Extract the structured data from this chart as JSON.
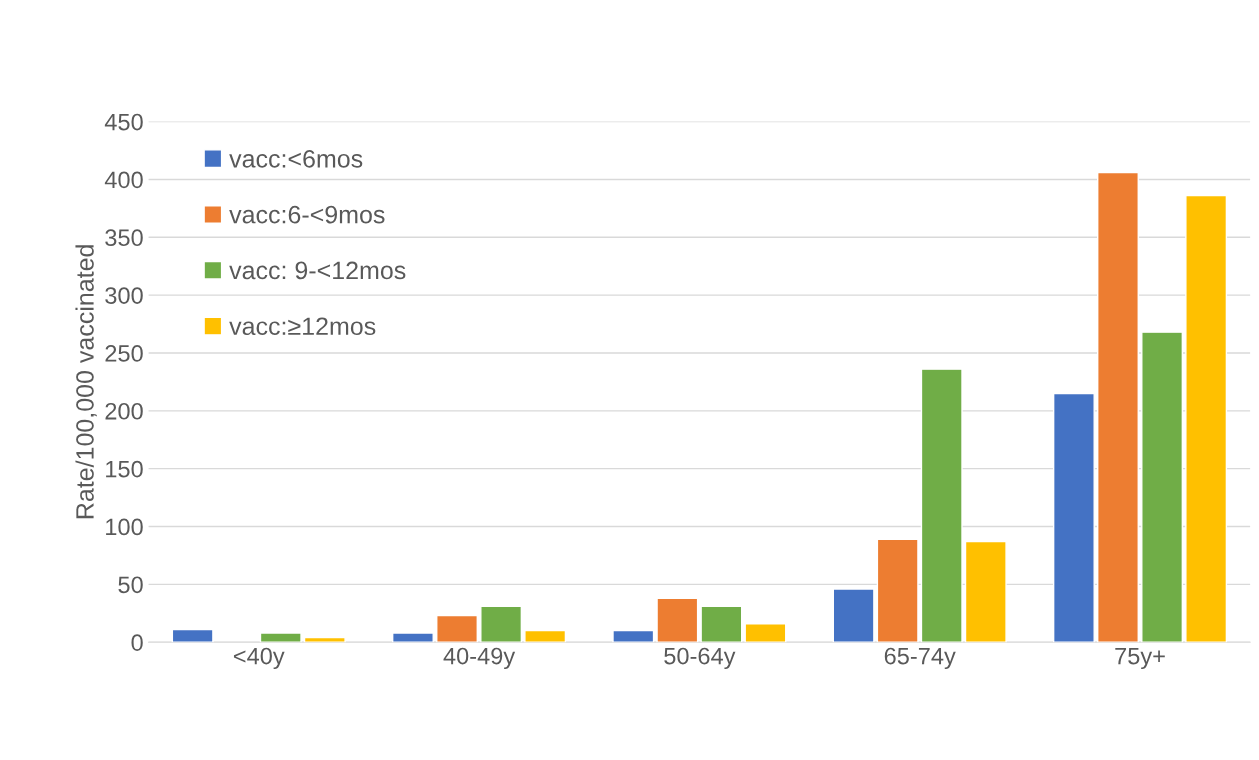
{
  "chart_data": {
    "type": "bar",
    "ylabel": "Rate/100,000 vaccinated",
    "categories": [
      "<40y",
      "40-49y",
      "50-64y",
      "65-74y",
      "75y+"
    ],
    "series": [
      {
        "name": "vacc:<6mos",
        "color": "#4472c4",
        "values": [
          11,
          8,
          10,
          46,
          215
        ]
      },
      {
        "name": "vacc:6-<9mos",
        "color": "#ed7d31",
        "values": [
          null,
          23,
          38,
          89,
          406
        ]
      },
      {
        "name": "vacc: 9-<12mos",
        "color": "#70ad47",
        "values": [
          8,
          31,
          31,
          236,
          268
        ]
      },
      {
        "name": "vacc:≥12mos",
        "color": "#ffc000",
        "values": [
          4,
          10,
          16,
          87,
          386
        ]
      }
    ],
    "ylim": [
      0,
      450
    ],
    "yticks": [
      0,
      50,
      100,
      150,
      200,
      250,
      300,
      350,
      400,
      450
    ],
    "grid": true,
    "legend": "top left"
  }
}
